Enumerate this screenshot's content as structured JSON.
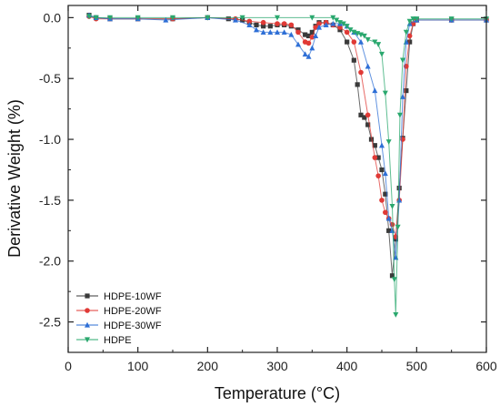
{
  "chart_data": {
    "type": "line",
    "title": "",
    "xlabel": "Temperature (°C)",
    "ylabel": "Derivative Weight (%)",
    "xlim": [
      0,
      600
    ],
    "ylim": [
      -2.75,
      0.1
    ],
    "xticks": [
      0,
      100,
      200,
      300,
      400,
      500,
      600
    ],
    "yticks": [
      0.0,
      -0.5,
      -1.0,
      -1.5,
      -2.0,
      -2.5
    ],
    "xtick_labels": [
      "0",
      "100",
      "200",
      "300",
      "400",
      "500",
      "600"
    ],
    "ytick_labels": [
      "0.0",
      "-0.5",
      "-1.0",
      "-1.5",
      "-2.0",
      "-2.5"
    ],
    "legend_position": "bottom-left",
    "grid": false,
    "series": [
      {
        "name": "HDPE-10WF",
        "color": "#3a3a3a",
        "marker": "square",
        "points": [
          [
            30,
            0.02
          ],
          [
            40,
            0.0
          ],
          [
            60,
            -0.01
          ],
          [
            100,
            -0.01
          ],
          [
            150,
            -0.01
          ],
          [
            200,
            0.0
          ],
          [
            230,
            -0.01
          ],
          [
            250,
            -0.02
          ],
          [
            260,
            -0.04
          ],
          [
            270,
            -0.06
          ],
          [
            280,
            -0.07
          ],
          [
            290,
            -0.07
          ],
          [
            300,
            -0.06
          ],
          [
            310,
            -0.06
          ],
          [
            320,
            -0.07
          ],
          [
            330,
            -0.1
          ],
          [
            340,
            -0.14
          ],
          [
            345,
            -0.15
          ],
          [
            350,
            -0.12
          ],
          [
            355,
            -0.07
          ],
          [
            360,
            -0.04
          ],
          [
            370,
            -0.04
          ],
          [
            380,
            -0.06
          ],
          [
            390,
            -0.1
          ],
          [
            400,
            -0.2
          ],
          [
            410,
            -0.35
          ],
          [
            415,
            -0.55
          ],
          [
            420,
            -0.8
          ],
          [
            425,
            -0.82
          ],
          [
            430,
            -0.88
          ],
          [
            435,
            -1.0
          ],
          [
            440,
            -1.05
          ],
          [
            445,
            -1.15
          ],
          [
            450,
            -1.25
          ],
          [
            455,
            -1.45
          ],
          [
            460,
            -1.75
          ],
          [
            465,
            -2.12
          ],
          [
            470,
            -1.82
          ],
          [
            475,
            -1.4
          ],
          [
            480,
            -0.99
          ],
          [
            485,
            -0.6
          ],
          [
            490,
            -0.2
          ],
          [
            495,
            -0.05
          ],
          [
            500,
            -0.02
          ],
          [
            550,
            -0.02
          ],
          [
            600,
            -0.02
          ]
        ]
      },
      {
        "name": "HDPE-20WF",
        "color": "#e03a36",
        "marker": "circle",
        "points": [
          [
            30,
            0.01
          ],
          [
            40,
            -0.01
          ],
          [
            60,
            -0.01
          ],
          [
            100,
            -0.01
          ],
          [
            150,
            -0.01
          ],
          [
            200,
            0.0
          ],
          [
            240,
            -0.01
          ],
          [
            260,
            -0.03
          ],
          [
            280,
            -0.04
          ],
          [
            300,
            -0.05
          ],
          [
            310,
            -0.05
          ],
          [
            320,
            -0.06
          ],
          [
            330,
            -0.12
          ],
          [
            340,
            -0.2
          ],
          [
            345,
            -0.21
          ],
          [
            350,
            -0.16
          ],
          [
            355,
            -0.08
          ],
          [
            360,
            -0.05
          ],
          [
            370,
            -0.04
          ],
          [
            380,
            -0.06
          ],
          [
            390,
            -0.08
          ],
          [
            400,
            -0.12
          ],
          [
            410,
            -0.2
          ],
          [
            420,
            -0.45
          ],
          [
            430,
            -0.8
          ],
          [
            440,
            -1.15
          ],
          [
            445,
            -1.3
          ],
          [
            450,
            -1.5
          ],
          [
            455,
            -1.6
          ],
          [
            460,
            -1.65
          ],
          [
            465,
            -1.7
          ],
          [
            470,
            -1.8
          ],
          [
            475,
            -1.5
          ],
          [
            480,
            -1.0
          ],
          [
            485,
            -0.4
          ],
          [
            490,
            -0.15
          ],
          [
            495,
            -0.05
          ],
          [
            500,
            -0.02
          ],
          [
            550,
            -0.02
          ],
          [
            600,
            -0.02
          ]
        ]
      },
      {
        "name": "HDPE-30WF",
        "color": "#2e6fd6",
        "marker": "triangle-up",
        "points": [
          [
            30,
            0.02
          ],
          [
            40,
            0.0
          ],
          [
            60,
            -0.01
          ],
          [
            100,
            -0.01
          ],
          [
            140,
            -0.02
          ],
          [
            200,
            0.0
          ],
          [
            240,
            -0.02
          ],
          [
            260,
            -0.06
          ],
          [
            270,
            -0.1
          ],
          [
            280,
            -0.12
          ],
          [
            290,
            -0.12
          ],
          [
            300,
            -0.12
          ],
          [
            310,
            -0.12
          ],
          [
            320,
            -0.14
          ],
          [
            330,
            -0.22
          ],
          [
            340,
            -0.3
          ],
          [
            345,
            -0.32
          ],
          [
            350,
            -0.25
          ],
          [
            355,
            -0.15
          ],
          [
            360,
            -0.08
          ],
          [
            370,
            -0.06
          ],
          [
            380,
            -0.05
          ],
          [
            390,
            -0.05
          ],
          [
            400,
            -0.07
          ],
          [
            410,
            -0.12
          ],
          [
            420,
            -0.2
          ],
          [
            430,
            -0.4
          ],
          [
            440,
            -0.6
          ],
          [
            450,
            -1.05
          ],
          [
            455,
            -1.28
          ],
          [
            460,
            -1.65
          ],
          [
            465,
            -1.75
          ],
          [
            470,
            -1.97
          ],
          [
            475,
            -1.5
          ],
          [
            480,
            -0.65
          ],
          [
            485,
            -0.2
          ],
          [
            490,
            -0.05
          ],
          [
            500,
            -0.02
          ],
          [
            550,
            -0.02
          ],
          [
            600,
            -0.02
          ]
        ]
      },
      {
        "name": "HDPE",
        "color": "#2aa86e",
        "marker": "triangle-down",
        "points": [
          [
            30,
            0.01
          ],
          [
            40,
            0.0
          ],
          [
            60,
            0.0
          ],
          [
            100,
            0.0
          ],
          [
            150,
            0.0
          ],
          [
            200,
            0.0
          ],
          [
            250,
            0.0
          ],
          [
            300,
            0.0
          ],
          [
            350,
            0.0
          ],
          [
            380,
            0.0
          ],
          [
            385,
            -0.02
          ],
          [
            390,
            -0.04
          ],
          [
            395,
            -0.05
          ],
          [
            400,
            -0.07
          ],
          [
            405,
            -0.1
          ],
          [
            410,
            -0.12
          ],
          [
            415,
            -0.13
          ],
          [
            420,
            -0.14
          ],
          [
            425,
            -0.15
          ],
          [
            430,
            -0.18
          ],
          [
            440,
            -0.2
          ],
          [
            445,
            -0.22
          ],
          [
            450,
            -0.3
          ],
          [
            455,
            -0.62
          ],
          [
            460,
            -1.02
          ],
          [
            465,
            -1.55
          ],
          [
            468,
            -2.15
          ],
          [
            470,
            -2.44
          ],
          [
            473,
            -1.72
          ],
          [
            476,
            -0.8
          ],
          [
            480,
            -0.35
          ],
          [
            485,
            -0.12
          ],
          [
            490,
            -0.03
          ],
          [
            495,
            -0.01
          ],
          [
            500,
            -0.01
          ],
          [
            550,
            -0.01
          ],
          [
            600,
            -0.01
          ]
        ]
      }
    ]
  }
}
